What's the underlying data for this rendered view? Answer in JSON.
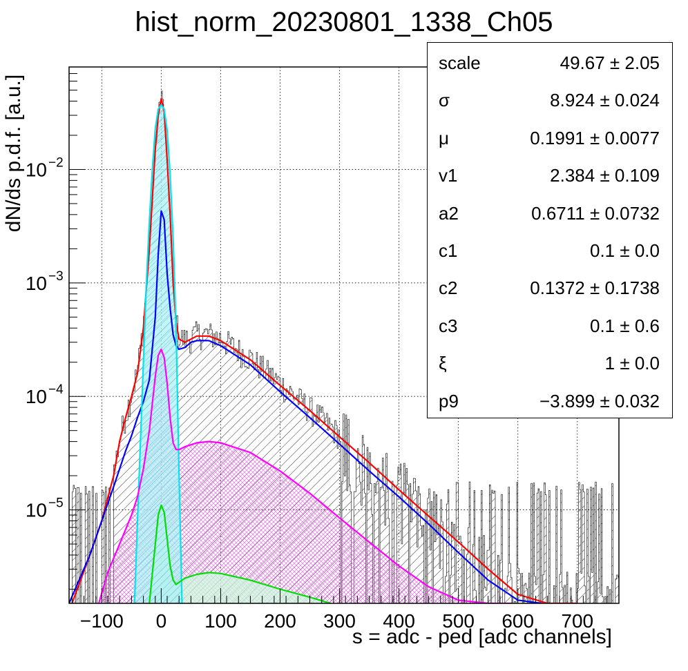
{
  "chart_data": {
    "type": "line",
    "title": "hist_norm_20230801_1338_Ch05",
    "xlabel": "s = adc - ped [adc channels]",
    "ylabel": "dN/ds p.d.f. [a.u.]",
    "xlim": [
      -155,
      770
    ],
    "ylim": [
      1.5e-06,
      0.08
    ],
    "yscale": "log",
    "grid": true,
    "x_ticks": [
      -100,
      0,
      100,
      200,
      300,
      400,
      500,
      600,
      700
    ],
    "x_tick_labels": [
      "−100",
      "0",
      "100",
      "200",
      "300",
      "400",
      "500",
      "600",
      "700"
    ],
    "y_ticks": [
      {
        "value": 0.01,
        "base": "10",
        "exp": "−2"
      },
      {
        "value": 0.001,
        "base": "10",
        "exp": "−3"
      },
      {
        "value": 0.0001,
        "base": "10",
        "exp": "−4"
      },
      {
        "value": 1e-05,
        "base": "10",
        "exp": "−5"
      }
    ],
    "series": [
      {
        "color": "#ff0000",
        "style": "line",
        "x": [
          -150,
          -120,
          -100,
          -80,
          -70,
          -60,
          -50,
          -40,
          -30,
          -20,
          -10,
          -5,
          0,
          5,
          10,
          15,
          20,
          25,
          30,
          40,
          50,
          60,
          80,
          100,
          150,
          200,
          250,
          300,
          350,
          400,
          450,
          500,
          550,
          600,
          650,
          700
        ],
        "y": [
          1.5e-06,
          4e-06,
          8e-06,
          2e-05,
          4e-05,
          6.5e-05,
          0.0001,
          0.00016,
          0.0004,
          0.002,
          0.015,
          0.03,
          0.042,
          0.032,
          0.012,
          0.004,
          0.001,
          0.00045,
          0.00032,
          0.0003,
          0.00032,
          0.00034,
          0.00034,
          0.00031,
          0.00021,
          0.000125,
          7.5e-05,
          4.4e-05,
          2.6e-05,
          1.5e-05,
          8.8e-06,
          5.2e-06,
          3e-06,
          1.8e-06,
          1.5e-06,
          1.5e-06
        ]
      },
      {
        "color": "#0000ff",
        "style": "line",
        "x": [
          -155,
          -120,
          -100,
          -80,
          -60,
          -50,
          -40,
          -30,
          -20,
          -10,
          -5,
          0,
          5,
          10,
          15,
          20,
          25,
          30,
          40,
          50,
          60,
          80,
          100,
          150,
          200,
          250,
          300,
          350,
          400,
          450,
          500,
          550,
          600,
          640
        ],
        "y": [
          1.5e-06,
          4e-06,
          8e-06,
          1.6e-05,
          3.3e-05,
          4.5e-05,
          6.5e-05,
          9e-05,
          0.00014,
          0.0005,
          0.0018,
          0.0043,
          0.0036,
          0.0012,
          0.0006,
          0.00035,
          0.00028,
          0.00026,
          0.00027,
          0.0003,
          0.00031,
          0.00031,
          0.00028,
          0.00019,
          0.00011,
          6.5e-05,
          3.8e-05,
          2.2e-05,
          1.3e-05,
          7.5e-06,
          4.2e-06,
          2.4e-06,
          1.6e-06,
          1.5e-06
        ]
      },
      {
        "color": "#00e5ee",
        "style": "line",
        "fill": "#b0f0f4",
        "x": [
          -45,
          -40,
          -30,
          -25,
          -20,
          -15,
          -10,
          -5,
          0,
          5,
          10,
          15,
          20,
          25,
          30,
          35
        ],
        "y": [
          1.5e-06,
          8e-06,
          0.0002,
          0.001,
          0.0035,
          0.01,
          0.023,
          0.034,
          0.037,
          0.034,
          0.022,
          0.009,
          0.0025,
          0.0004,
          2e-05,
          1.5e-06
        ]
      },
      {
        "color": "#ff00ff",
        "style": "line",
        "x": [
          -105,
          -90,
          -70,
          -50,
          -40,
          -30,
          -20,
          -10,
          -5,
          0,
          5,
          10,
          15,
          20,
          25,
          30,
          40,
          60,
          80,
          100,
          150,
          200,
          250,
          300,
          350,
          400,
          450,
          500,
          550,
          590
        ],
        "y": [
          1.5e-06,
          2.8e-06,
          5e-06,
          9e-06,
          1.3e-05,
          2.3e-05,
          5e-05,
          0.00015,
          0.00023,
          0.00026,
          0.00022,
          0.00013,
          6.5e-05,
          3.9e-05,
          3.4e-05,
          3.4e-05,
          3.6e-05,
          3.9e-05,
          4e-05,
          3.9e-05,
          3.2e-05,
          2.2e-05,
          1.4e-05,
          8.5e-06,
          5.2e-06,
          3.2e-06,
          2.1e-06,
          1.6e-06,
          1.5e-06,
          1.5e-06
        ]
      },
      {
        "color": "#00dd00",
        "style": "line",
        "fill": "#c8f5d8",
        "x": [
          -20,
          -10,
          -5,
          0,
          5,
          10,
          15,
          20,
          25,
          30,
          40,
          60,
          80,
          100,
          150,
          200,
          250,
          285
        ],
        "y": [
          1.5e-06,
          5e-06,
          9e-06,
          1.1e-05,
          9.5e-06,
          5.5e-06,
          3.2e-06,
          2.4e-06,
          2.2e-06,
          2.3e-06,
          2.5e-06,
          2.7e-06,
          2.8e-06,
          2.75e-06,
          2.4e-06,
          2e-06,
          1.7e-06,
          1.5e-06
        ]
      }
    ]
  },
  "stats": {
    "rows": [
      {
        "name": "scale",
        "value": "49.67",
        "err": "± 2.05"
      },
      {
        "name": "σ",
        "value": "8.924",
        "err": "± 0.024"
      },
      {
        "name": "μ",
        "value": "0.1991",
        "err": "± 0.0077"
      },
      {
        "name": "v1",
        "value": "2.384",
        "err": "± 0.109"
      },
      {
        "name": "a2",
        "value": "0.6711",
        "err": "± 0.0732"
      },
      {
        "name": "c1",
        "value": "0.1",
        "err": "± 0.0"
      },
      {
        "name": "c2",
        "value": "0.1372",
        "err": "± 0.1738"
      },
      {
        "name": "c3",
        "value": "0.1",
        "err": "± 0.6"
      },
      {
        "name": "ξ",
        "value": "1",
        "err": "± 0.0"
      },
      {
        "name": "p9",
        "value": "−3.899",
        "err": "± 0.032"
      }
    ]
  }
}
